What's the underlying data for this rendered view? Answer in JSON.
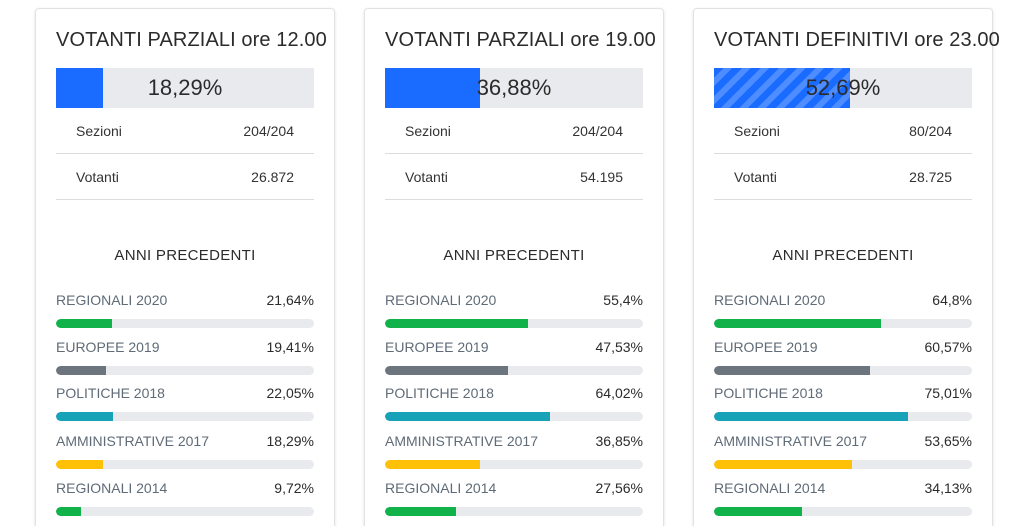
{
  "colors": {
    "primary": "#1a6bff",
    "regionali": "#12b24a",
    "europee": "#6c757d",
    "politiche": "#17a2b8",
    "amministrative": "#ffc107"
  },
  "cards": [
    {
      "title": "VOTANTI PARZIALI ore 12.00",
      "main_percent_label": "18,29%",
      "main_percent": 18.29,
      "striped": false,
      "sezioni_label": "Sezioni",
      "sezioni_value": "204/204",
      "votanti_label": "Votanti",
      "votanti_value": "26.872",
      "section_title": "ANNI PRECEDENTI",
      "history": [
        {
          "label": "REGIONALI 2020",
          "value_label": "21,64%",
          "value": 21.64,
          "color": "#12b24a"
        },
        {
          "label": "EUROPEE 2019",
          "value_label": "19,41%",
          "value": 19.41,
          "color": "#6c757d"
        },
        {
          "label": "POLITICHE 2018",
          "value_label": "22,05%",
          "value": 22.05,
          "color": "#17a2b8"
        },
        {
          "label": "AMMINISTRATIVE 2017",
          "value_label": "18,29%",
          "value": 18.29,
          "color": "#ffc107"
        },
        {
          "label": "REGIONALI 2014",
          "value_label": "9,72%",
          "value": 9.72,
          "color": "#12b24a"
        }
      ]
    },
    {
      "title": "VOTANTI PARZIALI ore 19.00",
      "main_percent_label": "36,88%",
      "main_percent": 36.88,
      "striped": false,
      "sezioni_label": "Sezioni",
      "sezioni_value": "204/204",
      "votanti_label": "Votanti",
      "votanti_value": "54.195",
      "section_title": "ANNI PRECEDENTI",
      "history": [
        {
          "label": "REGIONALI 2020",
          "value_label": "55,4%",
          "value": 55.4,
          "color": "#12b24a"
        },
        {
          "label": "EUROPEE 2019",
          "value_label": "47,53%",
          "value": 47.53,
          "color": "#6c757d"
        },
        {
          "label": "POLITICHE 2018",
          "value_label": "64,02%",
          "value": 64.02,
          "color": "#17a2b8"
        },
        {
          "label": "AMMINISTRATIVE 2017",
          "value_label": "36,85%",
          "value": 36.85,
          "color": "#ffc107"
        },
        {
          "label": "REGIONALI 2014",
          "value_label": "27,56%",
          "value": 27.56,
          "color": "#12b24a"
        }
      ]
    },
    {
      "title": "VOTANTI DEFINITIVI ore 23.00",
      "main_percent_label": "52,69%",
      "main_percent": 52.69,
      "striped": true,
      "sezioni_label": "Sezioni",
      "sezioni_value": "80/204",
      "votanti_label": "Votanti",
      "votanti_value": "28.725",
      "section_title": "ANNI PRECEDENTI",
      "history": [
        {
          "label": "REGIONALI 2020",
          "value_label": "64,8%",
          "value": 64.8,
          "color": "#12b24a"
        },
        {
          "label": "EUROPEE 2019",
          "value_label": "60,57%",
          "value": 60.57,
          "color": "#6c757d"
        },
        {
          "label": "POLITICHE 2018",
          "value_label": "75,01%",
          "value": 75.01,
          "color": "#17a2b8"
        },
        {
          "label": "AMMINISTRATIVE 2017",
          "value_label": "53,65%",
          "value": 53.65,
          "color": "#ffc107"
        },
        {
          "label": "REGIONALI 2014",
          "value_label": "34,13%",
          "value": 34.13,
          "color": "#12b24a"
        }
      ]
    }
  ]
}
